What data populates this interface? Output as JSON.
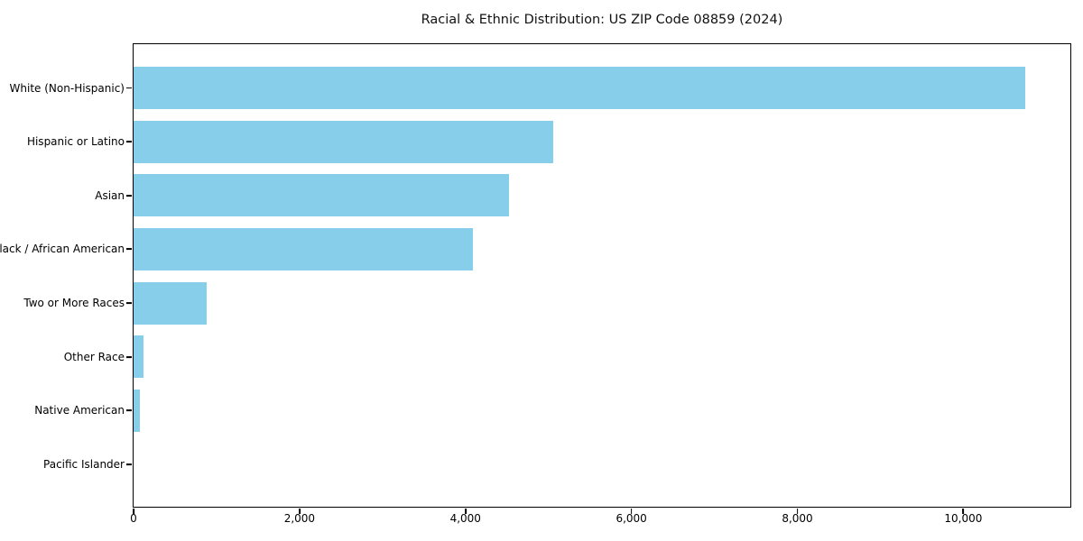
{
  "page": {
    "background": "#ffffff"
  },
  "chart_data": {
    "type": "bar",
    "orientation": "horizontal",
    "title": "Racial & Ethnic Distribution: US ZIP Code 08859 (2024)",
    "categories": [
      "White (Non-Hispanic)",
      "Hispanic or Latino",
      "Asian",
      "Black / African American",
      "Two or More Races",
      "Other Race",
      "Native American",
      "Pacific Islander"
    ],
    "values": [
      10745,
      5060,
      4525,
      4090,
      885,
      120,
      75,
      0
    ],
    "xlabel": "",
    "ylabel": "",
    "xlim": [
      0,
      11290
    ],
    "x_ticks": [
      0,
      2000,
      4000,
      6000,
      8000,
      10000
    ],
    "x_tick_labels": [
      "0",
      "2,000",
      "4,000",
      "6,000",
      "8,000",
      "10,000"
    ],
    "bar_color": "#87CEEB",
    "axis_color": "#000000",
    "text_color": "#000000",
    "grid": false,
    "legend": null
  }
}
